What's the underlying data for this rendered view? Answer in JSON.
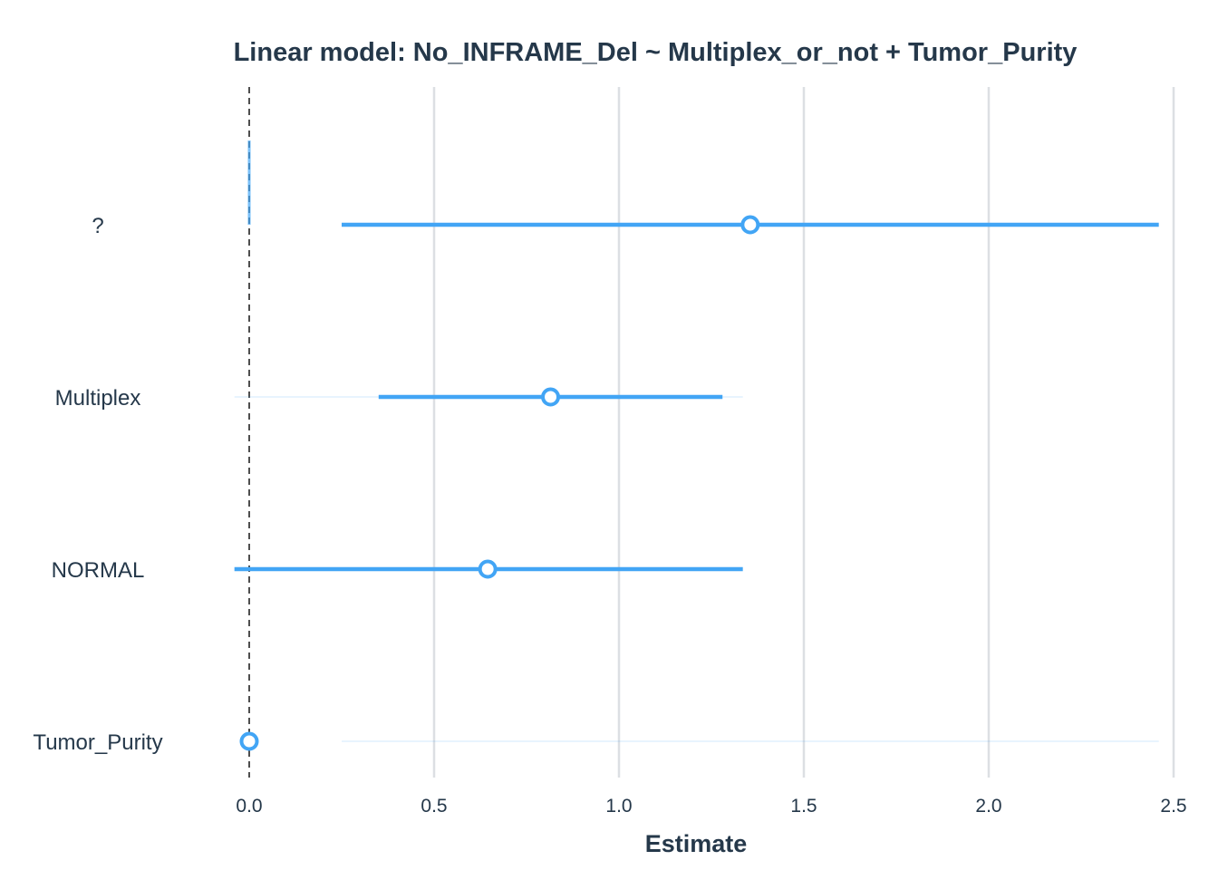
{
  "chart_data": {
    "type": "forest",
    "title": "Linear model: No_INFRAME_Del ~ Multiplex_or_not + Tumor_Purity",
    "xlabel": "Estimate",
    "ylabel": "",
    "xlim": [
      -0.07,
      2.52
    ],
    "x_ticks": [
      "0.0",
      "0.5",
      "1.0",
      "1.5",
      "2.0",
      "2.5"
    ],
    "x_tick_values": [
      0,
      0.5,
      1.0,
      1.5,
      2.0,
      2.5
    ],
    "reference_line": 0,
    "grid": "vertical",
    "series_color": "#42a5f5",
    "terms": [
      {
        "label": "?",
        "estimate": 1.355,
        "ci_low": 0.25,
        "ci_high": 2.46
      },
      {
        "label": "Multiplex",
        "estimate": 0.815,
        "ci_low": 0.35,
        "ci_high": 1.28
      },
      {
        "label": "NORMAL",
        "estimate": 0.645,
        "ci_low": -0.04,
        "ci_high": 1.335
      },
      {
        "label": "Tumor_Purity",
        "estimate": 0.0,
        "ci_low": 0.0,
        "ci_high": 0.0
      }
    ]
  }
}
